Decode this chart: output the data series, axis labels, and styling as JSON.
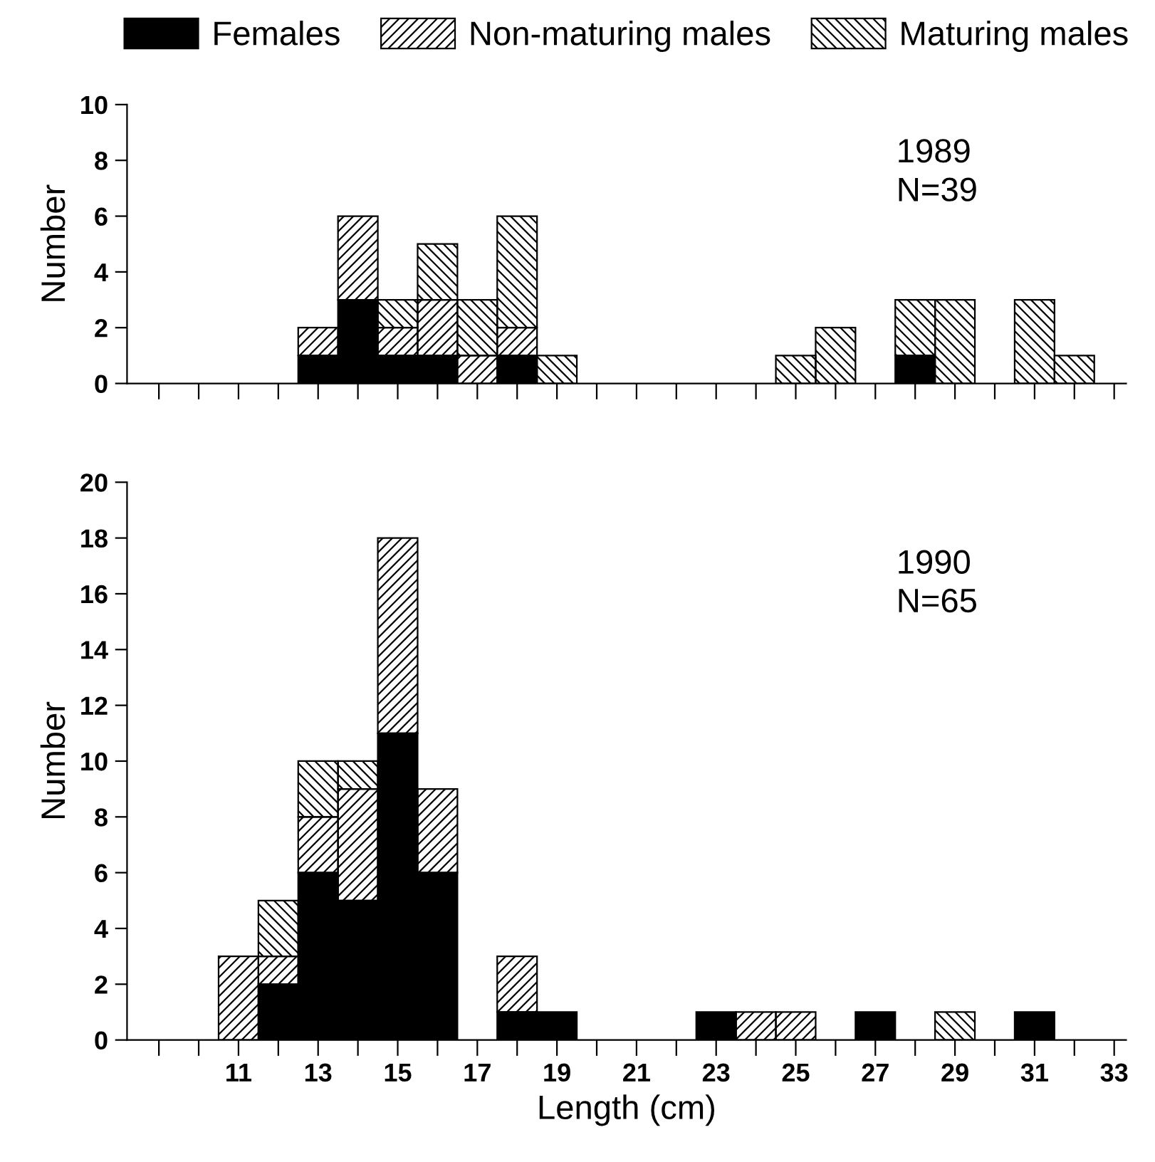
{
  "chart_data": [
    {
      "type": "bar",
      "stacked": true,
      "legend": "top",
      "ylabel": "Number",
      "tick_labels": "y",
      "annotations": [
        "1989\nN=39"
      ],
      "x": [
        13,
        14,
        15,
        16,
        17,
        18,
        19,
        25,
        26,
        28,
        29,
        31,
        32
      ],
      "series": [
        {
          "name": "Females",
          "color": "#000000",
          "values": [
            1,
            3,
            1,
            1,
            null,
            1,
            null,
            null,
            null,
            1,
            null,
            null,
            null
          ]
        },
        {
          "name": "Non-maturing males",
          "color": "#000000",
          "values": [
            1,
            3,
            1,
            2,
            1,
            1,
            null,
            null,
            null,
            null,
            null,
            null,
            null
          ]
        },
        {
          "name": "Maturing males",
          "color": "#000000",
          "values": [
            null,
            null,
            1,
            2,
            2,
            4,
            1,
            1,
            2,
            2,
            3,
            3,
            1
          ]
        }
      ],
      "xlim": [
        8.2,
        33.3
      ],
      "ylim": [
        0,
        10
      ],
      "yticks": [
        0,
        2,
        4,
        6,
        8,
        10
      ],
      "xticks": [
        {
          "value": 9,
          "label": null
        },
        {
          "value": 10,
          "label": null
        },
        {
          "value": 11,
          "label": null
        },
        {
          "value": 12,
          "label": null
        },
        {
          "value": 13,
          "label": null
        },
        {
          "value": 14,
          "label": null
        },
        {
          "value": 15,
          "label": null
        },
        {
          "value": 16,
          "label": null
        },
        {
          "value": 17,
          "label": null
        },
        {
          "value": 18,
          "label": null
        },
        {
          "value": 19,
          "label": null
        },
        {
          "value": 20,
          "label": null
        },
        {
          "value": 21,
          "label": null
        },
        {
          "value": 22,
          "label": null
        },
        {
          "value": 23,
          "label": null
        },
        {
          "value": 24,
          "label": null
        },
        {
          "value": 25,
          "label": null
        },
        {
          "value": 26,
          "label": null
        },
        {
          "value": 27,
          "label": null
        },
        {
          "value": 28,
          "label": null
        },
        {
          "value": 29,
          "label": null
        },
        {
          "value": 30,
          "label": null
        },
        {
          "value": 31,
          "label": null
        },
        {
          "value": 32,
          "label": null
        },
        {
          "value": 33,
          "label": null
        }
      ]
    },
    {
      "type": "bar",
      "stacked": true,
      "ylabel": "Number",
      "xlabel": "Length (cm)",
      "annotations": [
        "1990\nN=65"
      ],
      "x": [
        11,
        12,
        13,
        14,
        15,
        16,
        18,
        19,
        23,
        24,
        25,
        27,
        29,
        31
      ],
      "series": [
        {
          "color": "#000000",
          "values": [
            null,
            2,
            6,
            5,
            11,
            6,
            1,
            1,
            1,
            null,
            null,
            1,
            null,
            1
          ]
        },
        {
          "color": "#000000",
          "values": [
            3,
            1,
            2,
            4,
            7,
            3,
            2,
            null,
            null,
            1,
            1,
            null,
            null,
            null
          ]
        },
        {
          "color": "#000000",
          "values": [
            null,
            2,
            2,
            1,
            null,
            null,
            null,
            null,
            null,
            null,
            null,
            null,
            1,
            null
          ]
        }
      ],
      "xlim": [
        8.2,
        33.3
      ],
      "ylim": [
        0,
        20
      ],
      "yticks": [
        0,
        2,
        4,
        6,
        8,
        10,
        12,
        14,
        16,
        18,
        20
      ],
      "xticks": [
        {
          "value": 9,
          "label": null
        },
        {
          "value": 10,
          "label": null
        },
        11,
        {
          "value": 12,
          "label": null
        },
        13,
        {
          "value": 14,
          "label": null
        },
        15,
        {
          "value": 16,
          "label": null
        },
        17,
        {
          "value": 18,
          "label": null
        },
        19,
        {
          "value": 20,
          "label": null
        },
        21,
        {
          "value": 22,
          "label": null
        },
        23,
        {
          "value": 24,
          "label": null
        },
        25,
        {
          "value": 26,
          "label": null
        },
        27,
        {
          "value": 28,
          "label": null
        },
        29,
        {
          "value": 30,
          "label": null
        },
        31,
        {
          "value": 32,
          "label": null
        },
        33
      ]
    }
  ]
}
